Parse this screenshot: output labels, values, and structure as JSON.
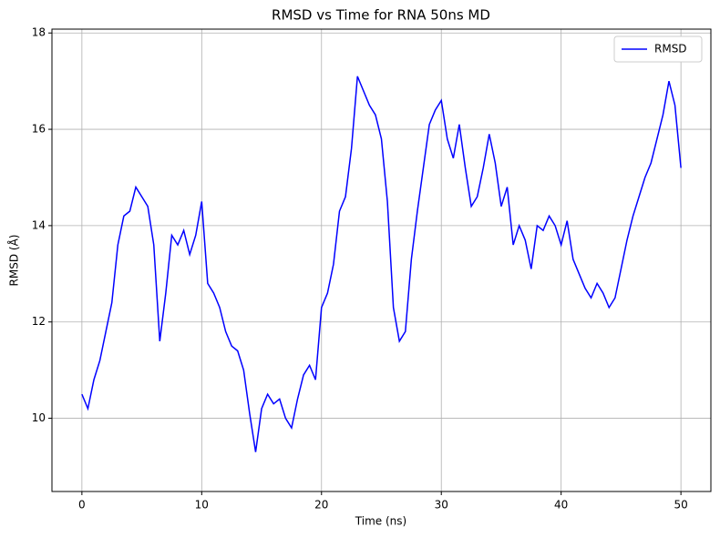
{
  "chart_data": {
    "type": "line",
    "title": "RMSD vs Time for RNA 50ns MD",
    "x_label": "Time (ns)",
    "y_label": "RMSD (Å)",
    "x": [
      0,
      0.5,
      1,
      1.5,
      2,
      2.5,
      3,
      3.5,
      4,
      4.5,
      5,
      5.5,
      6,
      6.5,
      7,
      7.5,
      8,
      8.5,
      9,
      9.5,
      10,
      10.5,
      11,
      11.5,
      12,
      12.5,
      13,
      13.5,
      14,
      14.5,
      15,
      15.5,
      16,
      16.5,
      17,
      17.5,
      18,
      18.5,
      19,
      19.5,
      20,
      20.5,
      21,
      21.5,
      22,
      22.5,
      23,
      23.5,
      24,
      24.5,
      25,
      25.5,
      26,
      26.5,
      27,
      27.5,
      28,
      28.5,
      29,
      29.5,
      30,
      30.5,
      31,
      31.5,
      32,
      32.5,
      33,
      33.5,
      34,
      34.5,
      35,
      35.5,
      36,
      36.5,
      37,
      37.5,
      38,
      38.5,
      39,
      39.5,
      40,
      40.5,
      41,
      41.5,
      42,
      42.5,
      43,
      43.5,
      44,
      44.5,
      45,
      45.5,
      46,
      46.5,
      47,
      47.5,
      48,
      48.5,
      49,
      49.5,
      50
    ],
    "series": [
      {
        "name": "RMSD",
        "color": "#0000ff",
        "values": [
          10.5,
          10.2,
          10.8,
          11.2,
          11.8,
          12.4,
          13.6,
          14.2,
          14.3,
          14.8,
          14.6,
          14.4,
          13.6,
          11.6,
          12.6,
          13.8,
          13.6,
          13.9,
          13.4,
          13.8,
          14.5,
          12.8,
          12.6,
          12.3,
          11.8,
          11.5,
          11.4,
          11.0,
          10.1,
          9.3,
          10.2,
          10.5,
          10.3,
          10.4,
          10.0,
          9.8,
          10.4,
          10.9,
          11.1,
          10.8,
          12.3,
          12.6,
          13.2,
          14.3,
          14.6,
          15.6,
          17.1,
          16.8,
          16.5,
          16.3,
          15.8,
          14.5,
          12.3,
          11.6,
          11.8,
          13.3,
          14.3,
          15.2,
          16.1,
          16.4,
          16.6,
          15.8,
          15.4,
          16.1,
          15.2,
          14.4,
          14.6,
          15.2,
          15.9,
          15.3,
          14.4,
          14.8,
          13.6,
          14.0,
          13.7,
          13.1,
          14.0,
          13.9,
          14.2,
          14.0,
          13.6,
          14.1,
          13.3,
          13.0,
          12.7,
          12.5,
          12.8,
          12.6,
          12.3,
          12.5,
          13.1,
          13.7,
          14.2,
          14.6,
          15.0,
          15.3,
          15.8,
          16.3,
          17.0,
          16.5,
          15.2
        ]
      }
    ],
    "xlim": [
      -2.5,
      52.5
    ],
    "ylim": [
      8.48,
      18.08
    ],
    "xticks": [
      0,
      10,
      20,
      30,
      40,
      50
    ],
    "yticks": [
      10,
      12,
      14,
      16,
      18
    ],
    "grid": true,
    "legend": "upper right"
  }
}
